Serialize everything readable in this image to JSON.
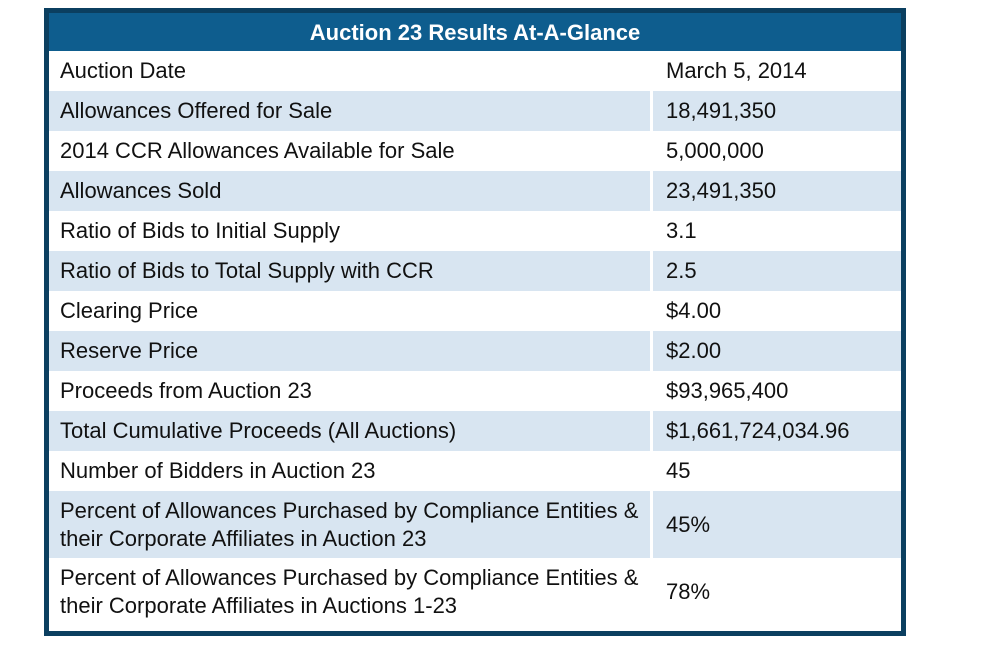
{
  "title": "Auction 23 Results At-A-Glance",
  "rows": [
    {
      "label": "Auction Date",
      "value": "March 5, 2014"
    },
    {
      "label": "Allowances Offered for Sale",
      "value": "18,491,350"
    },
    {
      "label": "2014 CCR Allowances Available for Sale",
      "value": "5,000,000"
    },
    {
      "label": "Allowances Sold",
      "value": "23,491,350"
    },
    {
      "label": "Ratio of Bids to Initial Supply",
      "value": "3.1"
    },
    {
      "label": "Ratio of Bids to Total Supply with CCR",
      "value": "2.5"
    },
    {
      "label": "Clearing Price",
      "value": "$4.00"
    },
    {
      "label": "Reserve Price",
      "value": "$2.00"
    },
    {
      "label": "Proceeds from Auction 23",
      "value": "$93,965,400"
    },
    {
      "label": "Total Cumulative Proceeds (All Auctions)",
      "value": "$1,661,724,034.96"
    },
    {
      "label": "Number of Bidders in Auction 23",
      "value": "45"
    },
    {
      "label": "Percent of Allowances Purchased by Compliance Entities & their Corporate Affiliates in Auction 23",
      "value": "45%"
    },
    {
      "label": "Percent of Allowances Purchased by Compliance Entities & their Corporate Affiliates in Auctions 1-23",
      "value": "78%"
    }
  ],
  "colors": {
    "header": "#0e5d8e",
    "border": "#0b3f60",
    "stripe": "#d8e5f1"
  }
}
